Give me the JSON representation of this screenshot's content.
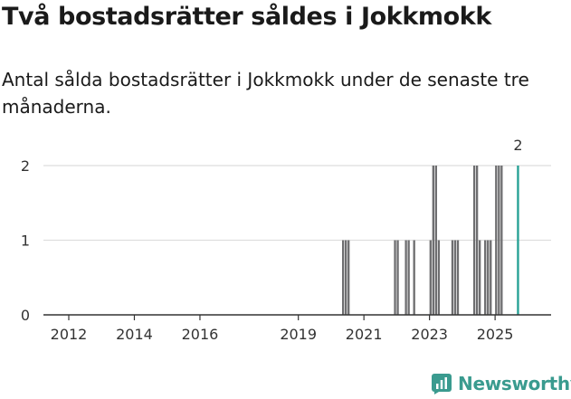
{
  "header": {
    "title": "Två bostadsrätter såldes i Jokkmokk",
    "subtitle": "Antal sålda bostadsrätter i Jokkmokk under de senaste tre månaderna."
  },
  "brand": {
    "name": "Newsworthy",
    "icon": "newsworthy-logo-icon",
    "color": "#3a9b8f"
  },
  "colors": {
    "bar": "#6e6e70",
    "highlight": "#24a094",
    "grid": "#dedede",
    "axis": "#333333"
  },
  "chart_data": {
    "type": "bar",
    "title": "Två bostadsrätter såldes i Jokkmokk",
    "subtitle": "Antal sålda bostadsrätter i Jokkmokk under de senaste tre månaderna.",
    "xlabel": "",
    "ylabel": "",
    "grid": true,
    "ylim": [
      0,
      2
    ],
    "yticks": [
      "0",
      "1",
      "2"
    ],
    "xlim": [
      "2011-07",
      "2026-06"
    ],
    "xticks": [
      {
        "date": "2012-01",
        "label": "2012"
      },
      {
        "date": "2014-01",
        "label": "2014"
      },
      {
        "date": "2016-01",
        "label": "2016"
      },
      {
        "date": "2019-01",
        "label": "2019"
      },
      {
        "date": "2021-01",
        "label": "2021"
      },
      {
        "date": "2023-01",
        "label": "2023"
      },
      {
        "date": "2025-01",
        "label": "2025"
      }
    ],
    "bars": [
      {
        "date": "2020-05",
        "value": 1
      },
      {
        "date": "2020-06",
        "value": 1
      },
      {
        "date": "2020-07",
        "value": 1
      },
      {
        "date": "2021-12",
        "value": 1
      },
      {
        "date": "2022-01",
        "value": 1
      },
      {
        "date": "2022-04",
        "value": 1
      },
      {
        "date": "2022-05",
        "value": 1
      },
      {
        "date": "2022-07",
        "value": 1
      },
      {
        "date": "2023-01",
        "value": 1
      },
      {
        "date": "2023-02",
        "value": 2
      },
      {
        "date": "2023-03",
        "value": 2
      },
      {
        "date": "2023-04",
        "value": 1
      },
      {
        "date": "2023-09",
        "value": 1
      },
      {
        "date": "2023-10",
        "value": 1
      },
      {
        "date": "2023-11",
        "value": 1
      },
      {
        "date": "2024-05",
        "value": 2
      },
      {
        "date": "2024-06",
        "value": 2
      },
      {
        "date": "2024-07",
        "value": 1
      },
      {
        "date": "2024-09",
        "value": 1
      },
      {
        "date": "2024-10",
        "value": 1
      },
      {
        "date": "2024-11",
        "value": 1
      },
      {
        "date": "2025-01",
        "value": 2
      },
      {
        "date": "2025-02",
        "value": 2
      },
      {
        "date": "2025-03",
        "value": 2
      }
    ],
    "highlight": {
      "date": "2025-09",
      "value": 2,
      "label": "2"
    }
  }
}
